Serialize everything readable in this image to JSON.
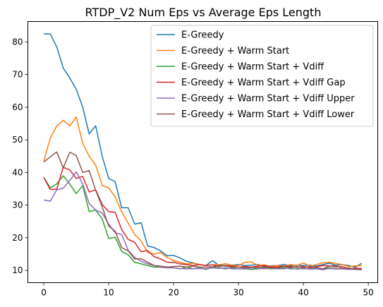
{
  "chart_data": {
    "type": "line",
    "title": "RTDP_V2 Num Eps vs Average Eps Length",
    "xlabel": "",
    "ylabel": "",
    "xlim": [
      -2.45,
      51.45
    ],
    "ylim": [
      6.25,
      86.25
    ],
    "xticks": [
      0,
      10,
      20,
      30,
      40,
      50
    ],
    "yticks": [
      10,
      20,
      30,
      40,
      50,
      60,
      70,
      80
    ],
    "grid": false,
    "legend_position": "top-right",
    "x": [
      0,
      1,
      2,
      3,
      4,
      5,
      6,
      7,
      8,
      9,
      10,
      11,
      12,
      13,
      14,
      15,
      16,
      17,
      18,
      19,
      20,
      21,
      22,
      23,
      24,
      25,
      26,
      27,
      28,
      29,
      30,
      31,
      32,
      33,
      34,
      35,
      36,
      37,
      38,
      39,
      40,
      41,
      42,
      43,
      44,
      45,
      46,
      47,
      48,
      49
    ],
    "series": [
      {
        "name": "E-Greedy",
        "color": "#1f77b4",
        "values": [
          82.5,
          82.4,
          78.5,
          72,
          69,
          65.5,
          60,
          51.8,
          54.3,
          45,
          38.2,
          37.2,
          29.2,
          29.2,
          24.2,
          24.6,
          17.5,
          17,
          16,
          14.5,
          14.6,
          13.8,
          12.8,
          12.3,
          11.8,
          11.5,
          13,
          11.5,
          12,
          11.6,
          11.8,
          11.5,
          11.6,
          11.8,
          11.2,
          11.4,
          11.5,
          11.8,
          11.5,
          11.6,
          11.5,
          11.6,
          11.3,
          11.8,
          12.2,
          11.6,
          11.8,
          11.5,
          11,
          12.2
        ]
      },
      {
        "name": "E-Greedy + Warm Start",
        "color": "#ff7f0e",
        "values": [
          43.5,
          50.5,
          54.3,
          56,
          54.2,
          57,
          49,
          45,
          42.2,
          36,
          35.3,
          32.5,
          28,
          24.5,
          21,
          19,
          15.5,
          15,
          15.5,
          14,
          13,
          12.5,
          12,
          12.2,
          11.8,
          11.5,
          11.7,
          11.8,
          12,
          11.5,
          11.5,
          12.5,
          12.6,
          11.5,
          11.7,
          11.2,
          11.5,
          11.3,
          11.8,
          11.5,
          12.3,
          11.3,
          11.8,
          12.3,
          12.5,
          12.1,
          11.8,
          11.2,
          11.4,
          11.5
        ]
      },
      {
        "name": "E-Greedy + Warm Start + Vdiff",
        "color": "#2ca02c",
        "values": [
          38.5,
          35.3,
          36.5,
          39,
          36.5,
          33.5,
          36,
          28,
          28.5,
          25.8,
          19.8,
          20.2,
          15.8,
          14.8,
          12.5,
          12,
          11.5,
          11,
          11,
          11,
          10.8,
          10.5,
          11,
          10.5,
          10.8,
          10.3,
          11,
          10.8,
          10.5,
          10.8,
          10.5,
          10.5,
          10.3,
          10.5,
          10.7,
          10.5,
          10.6,
          10.8,
          10.5,
          10.6,
          10.5,
          10.5,
          10.7,
          10.5,
          10.8,
          10.5,
          10.5,
          10.3,
          10.4,
          10.4
        ]
      },
      {
        "name": "E-Greedy + Warm Start + Vdiff Gap",
        "color": "#d62728",
        "values": [
          38.5,
          34.8,
          34.9,
          41.6,
          40.8,
          38.2,
          38.8,
          34,
          34.7,
          30.2,
          28,
          27.8,
          22.5,
          19.5,
          18.6,
          15.7,
          16.1,
          14.2,
          13.5,
          12.5,
          12.5,
          12,
          11.8,
          11.5,
          11.8,
          11.5,
          11.7,
          11.2,
          11.5,
          11.3,
          11,
          11.2,
          11,
          11.3,
          11.5,
          11,
          11.1,
          11.3,
          11.2,
          11,
          11.2,
          10.8,
          11.1,
          11.5,
          11.4,
          11,
          11.2,
          10.5,
          10.7,
          10.6
        ]
      },
      {
        "name": "E-Greedy + Warm Start + Vdiff Upper",
        "color": "#9467bd",
        "values": [
          31.6,
          31.2,
          34.7,
          35.2,
          37.5,
          40.2,
          36.5,
          30.5,
          28.5,
          27.6,
          24.2,
          21.5,
          21,
          16.2,
          14,
          12.8,
          12,
          11.5,
          11,
          10.8,
          10.8,
          10.6,
          10.5,
          10.5,
          10.6,
          10.5,
          10.8,
          10.6,
          10.8,
          10.5,
          10.5,
          10.4,
          10.8,
          10.6,
          10.5,
          10.7,
          10.5,
          10.5,
          10.8,
          10.4,
          10.6,
          10.4,
          10.5,
          10.2,
          10.6,
          10.4,
          10.5,
          10.3,
          10.4,
          10.4
        ]
      },
      {
        "name": "E-Greedy + Warm Start + Vdiff Lower",
        "color": "#8c564b",
        "values": [
          43.2,
          44.8,
          46.3,
          41.4,
          46.2,
          45.2,
          40,
          40.6,
          34.5,
          29.5,
          23.6,
          22,
          17,
          16,
          13.5,
          13.6,
          12.5,
          11.5,
          11.3,
          11,
          11.2,
          11.3,
          11,
          11.3,
          11,
          11,
          11.1,
          11.4,
          11.3,
          11,
          11,
          10.8,
          11,
          10.9,
          11,
          10.8,
          10.8,
          11.2,
          10.9,
          11.2,
          10.8,
          11.2,
          10.9,
          10.5,
          11.3,
          11.5,
          10.6,
          10.8,
          10.3,
          10.2
        ]
      }
    ]
  }
}
